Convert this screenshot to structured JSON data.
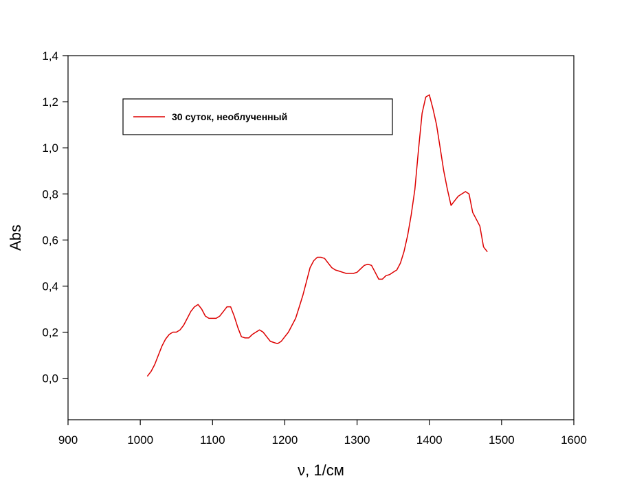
{
  "chart_data": {
    "type": "line",
    "title": "",
    "xlabel": "ν, 1/см",
    "ylabel": "Abs",
    "xlim": [
      900,
      1600
    ],
    "ylim": [
      -0.18,
      1.4
    ],
    "xticks": [
      "900",
      "1000",
      "1100",
      "1200",
      "1300",
      "1400",
      "1500",
      "1600"
    ],
    "yticks": [
      "0,0",
      "0,2",
      "0,4",
      "0,6",
      "0,8",
      "1,0",
      "1,2",
      "1,4"
    ],
    "grid": false,
    "legend_position": "top-left",
    "series": [
      {
        "name": "30 суток, необлученный",
        "color": "#dd0000",
        "x": [
          1010,
          1015,
          1020,
          1025,
          1030,
          1035,
          1040,
          1045,
          1050,
          1055,
          1060,
          1065,
          1070,
          1075,
          1080,
          1085,
          1090,
          1095,
          1100,
          1105,
          1110,
          1115,
          1120,
          1125,
          1130,
          1135,
          1140,
          1145,
          1150,
          1155,
          1160,
          1165,
          1170,
          1175,
          1180,
          1185,
          1190,
          1195,
          1200,
          1205,
          1210,
          1215,
          1220,
          1225,
          1230,
          1235,
          1240,
          1245,
          1250,
          1255,
          1260,
          1265,
          1270,
          1275,
          1280,
          1285,
          1290,
          1295,
          1300,
          1305,
          1310,
          1315,
          1320,
          1325,
          1330,
          1335,
          1340,
          1345,
          1350,
          1355,
          1360,
          1365,
          1370,
          1375,
          1380,
          1385,
          1390,
          1395,
          1400,
          1405,
          1410,
          1415,
          1420,
          1425,
          1430,
          1435,
          1440,
          1445,
          1450,
          1455,
          1460,
          1465,
          1470,
          1475,
          1480
        ],
        "y": [
          0.01,
          0.03,
          0.06,
          0.1,
          0.14,
          0.17,
          0.19,
          0.2,
          0.2,
          0.21,
          0.23,
          0.26,
          0.29,
          0.31,
          0.32,
          0.3,
          0.27,
          0.26,
          0.26,
          0.26,
          0.27,
          0.29,
          0.31,
          0.31,
          0.27,
          0.22,
          0.18,
          0.175,
          0.175,
          0.19,
          0.2,
          0.21,
          0.2,
          0.18,
          0.16,
          0.155,
          0.15,
          0.16,
          0.18,
          0.2,
          0.23,
          0.26,
          0.31,
          0.36,
          0.42,
          0.48,
          0.51,
          0.525,
          0.525,
          0.52,
          0.5,
          0.48,
          0.47,
          0.465,
          0.46,
          0.455,
          0.455,
          0.455,
          0.46,
          0.475,
          0.49,
          0.495,
          0.49,
          0.46,
          0.43,
          0.43,
          0.445,
          0.45,
          0.46,
          0.47,
          0.5,
          0.55,
          0.62,
          0.71,
          0.82,
          0.99,
          1.15,
          1.22,
          1.23,
          1.17,
          1.1,
          1.0,
          0.9,
          0.82,
          0.75,
          0.77,
          0.79,
          0.8,
          0.81,
          0.8,
          0.72,
          0.69,
          0.66,
          0.57,
          0.55
        ]
      }
    ]
  }
}
